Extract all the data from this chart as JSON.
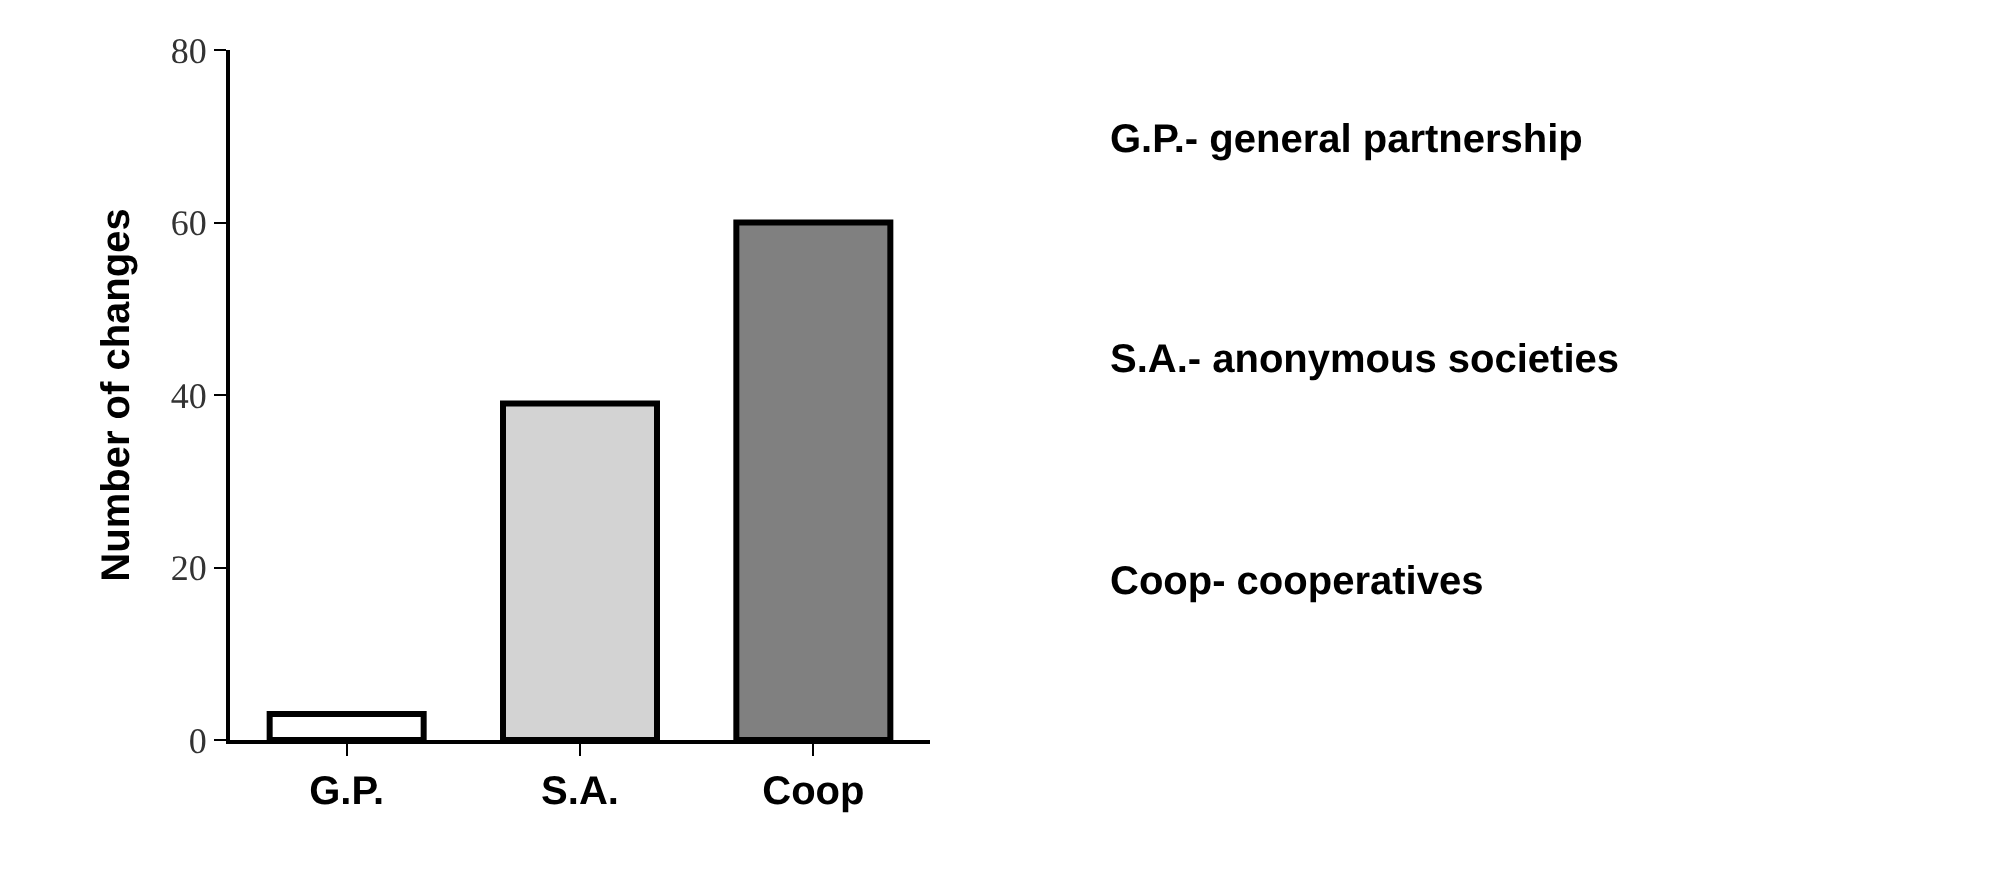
{
  "chart_data": {
    "type": "bar",
    "ylabel": "Number of changes",
    "categories": [
      "G.P.",
      "S.A.",
      "Coop"
    ],
    "values": [
      3,
      39,
      60
    ],
    "colors": [
      "#ffffff",
      "#d3d3d3",
      "#808080"
    ],
    "ylim": [
      0,
      80
    ],
    "yticks": [
      0,
      20,
      40,
      60,
      80
    ],
    "annotations": [
      "G.P.- general partnership",
      "S.A.- anonymous societies",
      "Coop- cooperatives"
    ]
  }
}
